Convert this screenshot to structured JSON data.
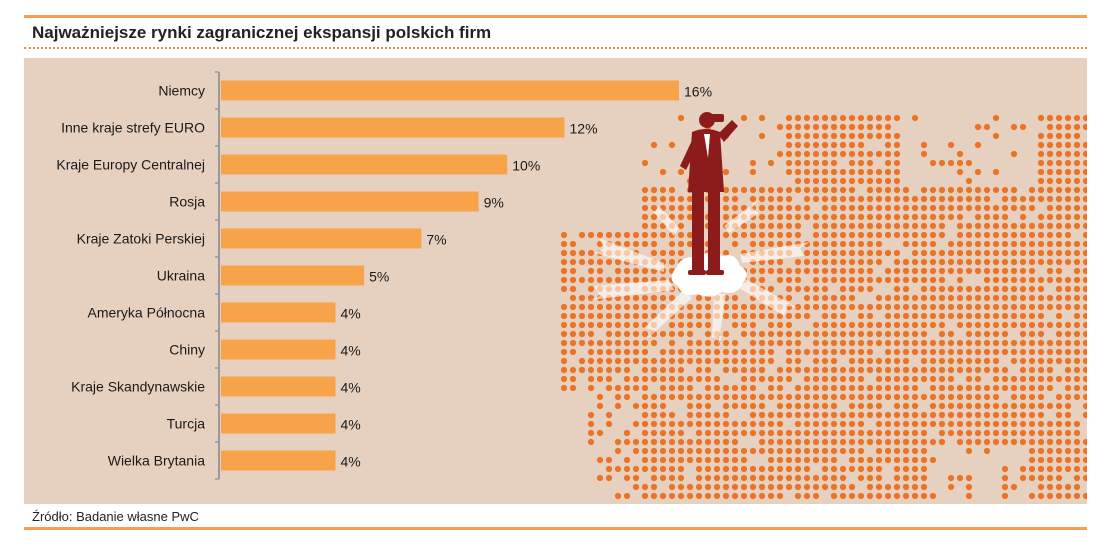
{
  "title": "Najważniejsze rynki zagranicznej ekspansji polskich firm",
  "source": "Źródło: Badanie własne PwC",
  "colors": {
    "bar": "#f7a34a",
    "panel": "#e6d1c1",
    "accent_rule": "#f0a050",
    "map_dots": "#ec7225",
    "figure": "#8c1c1c"
  },
  "chart_data": {
    "type": "bar",
    "orientation": "horizontal",
    "categories": [
      "Niemcy",
      "Inne kraje strefy EURO",
      "Kraje Europy Centralnej",
      "Rosja",
      "Kraje Zatoki Perskiej",
      "Ukraina",
      "Ameryka Północna",
      "Chiny",
      "Kraje Skandynawskie",
      "Turcja",
      "Wielka Brytania"
    ],
    "values": [
      16,
      12,
      10,
      9,
      7,
      5,
      4,
      4,
      4,
      4,
      4
    ],
    "value_labels": [
      "16%",
      "12%",
      "10%",
      "9%",
      "7%",
      "5%",
      "4%",
      "4%",
      "4%",
      "4%",
      "4%"
    ],
    "unit": "%",
    "xlim": [
      0,
      16
    ],
    "grid": false,
    "legend": "none"
  },
  "illustration": {
    "background": "dotted-europe-map",
    "figure": "businessman-with-binoculars"
  }
}
